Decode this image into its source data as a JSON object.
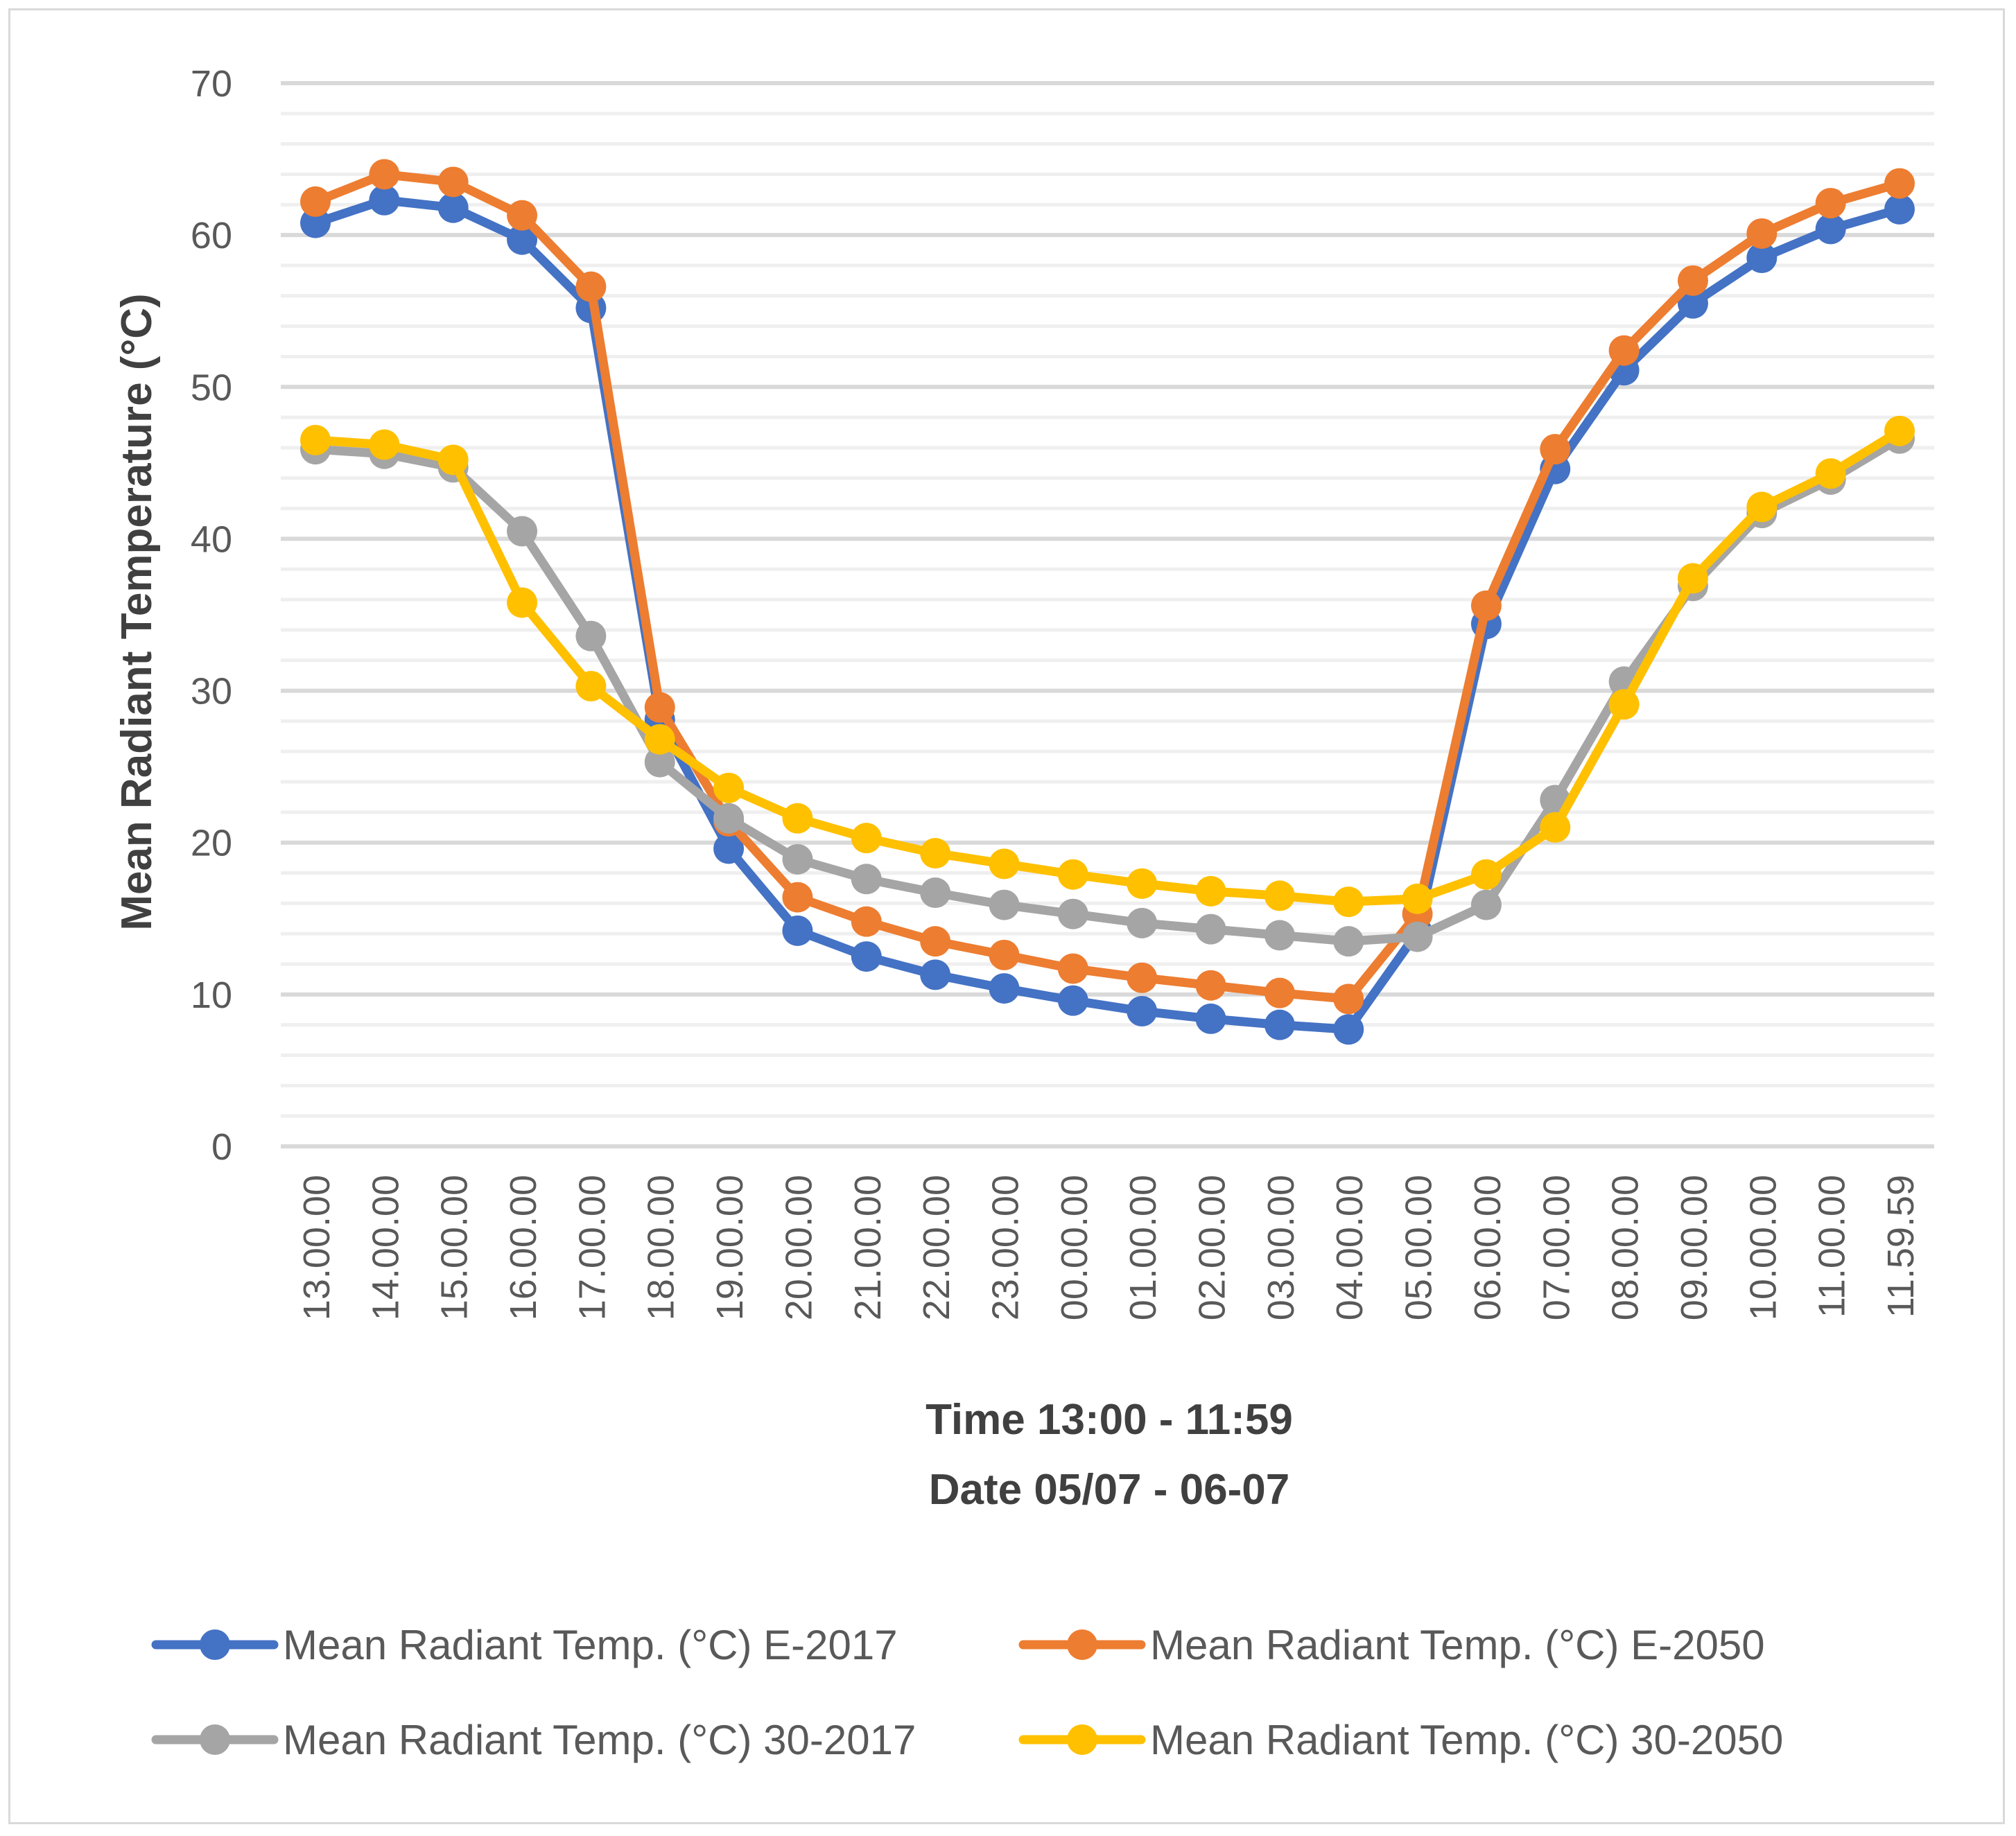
{
  "chart_data": {
    "type": "line",
    "title": "",
    "xlabel_lines": [
      "Time 13:00 - 11:59",
      "Date 05/07 - 06-07"
    ],
    "ylabel": "Mean Radiant Temperature  (°C)",
    "ylim": [
      0,
      70
    ],
    "yticks": [
      0,
      10,
      20,
      30,
      40,
      50,
      60,
      70
    ],
    "grid": true,
    "legend_position": "bottom",
    "categories": [
      "13.00.00",
      "14.00.00",
      "15.00.00",
      "16.00.00",
      "17.00.00",
      "18.00.00",
      "19.00.00",
      "20.00.00",
      "21.00.00",
      "22.00.00",
      "23.00.00",
      "00.00.00",
      "01.00.00",
      "02.00.00",
      "03.00.00",
      "04.00.00",
      "05.00.00",
      "06.00.00",
      "07.00.00",
      "08.00.00",
      "09.00.00",
      "10.00.00",
      "11.00.00",
      "11.59.59"
    ],
    "series": [
      {
        "name": "Mean Radiant Temp.  (°C) E-2017",
        "color": "#4472c4",
        "values": [
          60.8,
          62.3,
          61.8,
          59.7,
          55.2,
          28.1,
          19.6,
          14.2,
          12.5,
          11.3,
          10.4,
          9.6,
          8.9,
          8.4,
          8.0,
          7.7,
          14.1,
          34.4,
          44.6,
          51.1,
          55.5,
          58.5,
          60.4,
          61.7
        ]
      },
      {
        "name": "Mean Radiant Temp.  (°C) E-2050",
        "color": "#ed7d31",
        "values": [
          62.2,
          64.0,
          63.5,
          61.3,
          56.6,
          28.9,
          21.4,
          16.4,
          14.8,
          13.5,
          12.6,
          11.7,
          11.1,
          10.6,
          10.1,
          9.7,
          15.3,
          35.6,
          45.9,
          52.4,
          57.0,
          60.1,
          62.1,
          63.4
        ]
      },
      {
        "name": "Mean Radiant Temp.  (°C) 30-2017",
        "color": "#a5a5a5",
        "values": [
          45.9,
          45.6,
          44.7,
          40.5,
          33.6,
          25.3,
          21.6,
          18.9,
          17.6,
          16.7,
          15.9,
          15.3,
          14.7,
          14.3,
          13.9,
          13.5,
          13.8,
          15.9,
          22.8,
          30.6,
          36.9,
          41.7,
          43.9,
          46.6
        ]
      },
      {
        "name": "Mean Radiant Temp.  (°C) 30-2050",
        "color": "#ffc000",
        "values": [
          46.5,
          46.2,
          45.2,
          35.8,
          30.3,
          26.8,
          23.6,
          21.6,
          20.3,
          19.3,
          18.6,
          17.9,
          17.3,
          16.8,
          16.5,
          16.1,
          16.3,
          17.9,
          21.0,
          29.1,
          37.4,
          42.1,
          44.3,
          47.1
        ]
      }
    ]
  }
}
